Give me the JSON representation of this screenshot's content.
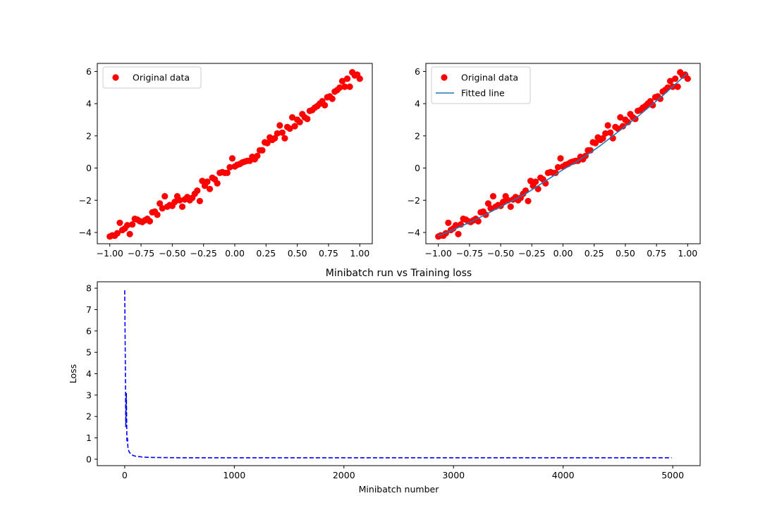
{
  "chart_data": [
    {
      "type": "scatter",
      "title": "",
      "xlabel": "",
      "ylabel": "",
      "xlim": [
        -1.1,
        1.1
      ],
      "ylim": [
        -4.7,
        6.5
      ],
      "xticks": [
        -1.0,
        -0.75,
        -0.5,
        -0.25,
        0.0,
        0.25,
        0.5,
        0.75,
        1.0
      ],
      "xtick_labels": [
        "−1.00",
        "−0.75",
        "−0.50",
        "−0.25",
        "0.00",
        "0.25",
        "0.50",
        "0.75",
        "1.00"
      ],
      "yticks": [
        -4,
        -2,
        0,
        2,
        4,
        6
      ],
      "ytick_labels": [
        "−4",
        "−2",
        "0",
        "2",
        "4",
        "6"
      ],
      "legend": {
        "placement": "upper left",
        "entries": [
          "Original data"
        ]
      },
      "series": [
        {
          "name": "Original data",
          "kind": "scatter",
          "color": "#ff0000",
          "x": [
            -1.0,
            -0.98,
            -0.96,
            -0.94,
            -0.92,
            -0.9,
            -0.88,
            -0.86,
            -0.84,
            -0.82,
            -0.8,
            -0.78,
            -0.76,
            -0.74,
            -0.72,
            -0.7,
            -0.68,
            -0.66,
            -0.64,
            -0.62,
            -0.6,
            -0.58,
            -0.56,
            -0.54,
            -0.52,
            -0.5,
            -0.48,
            -0.46,
            -0.44,
            -0.42,
            -0.4,
            -0.38,
            -0.36,
            -0.34,
            -0.32,
            -0.3,
            -0.28,
            -0.26,
            -0.24,
            -0.22,
            -0.2,
            -0.18,
            -0.16,
            -0.14,
            -0.12,
            -0.1,
            -0.08,
            -0.06,
            -0.04,
            -0.02,
            0.0,
            0.02,
            0.04,
            0.06,
            0.08,
            0.1,
            0.12,
            0.14,
            0.16,
            0.18,
            0.2,
            0.22,
            0.24,
            0.26,
            0.28,
            0.3,
            0.32,
            0.34,
            0.36,
            0.38,
            0.4,
            0.42,
            0.44,
            0.46,
            0.48,
            0.5,
            0.52,
            0.54,
            0.56,
            0.58,
            0.6,
            0.62,
            0.64,
            0.66,
            0.68,
            0.7,
            0.72,
            0.74,
            0.76,
            0.78,
            0.8,
            0.82,
            0.84,
            0.86,
            0.88,
            0.9,
            0.92,
            0.94,
            0.96,
            0.98,
            1.0
          ],
          "y": [
            -4.25,
            -4.18,
            -4.2,
            -4.05,
            -3.4,
            -3.85,
            -3.75,
            -3.55,
            -4.1,
            -3.5,
            -3.15,
            -3.2,
            -3.3,
            -3.35,
            -3.25,
            -3.15,
            -3.3,
            -2.75,
            -2.7,
            -2.9,
            -2.2,
            -2.5,
            -1.75,
            -2.4,
            -2.3,
            -2.35,
            -2.1,
            -1.75,
            -2.0,
            -2.4,
            -1.95,
            -1.8,
            -2.0,
            -1.85,
            -1.6,
            -1.4,
            -2.05,
            -0.8,
            -1.1,
            -0.85,
            -1.3,
            -0.6,
            -0.7,
            -0.95,
            -0.3,
            -0.25,
            -0.3,
            -0.3,
            0.05,
            0.6,
            0.1,
            0.2,
            0.25,
            0.35,
            0.4,
            0.45,
            0.45,
            0.7,
            0.55,
            0.75,
            1.1,
            1.1,
            1.6,
            1.55,
            1.9,
            1.75,
            1.85,
            2.15,
            2.65,
            2.2,
            1.85,
            2.55,
            2.45,
            3.15,
            2.6,
            3.0,
            2.85,
            3.35,
            3.15,
            3.05,
            3.55,
            3.6,
            3.75,
            3.85,
            4.0,
            4.15,
            3.9,
            4.4,
            4.45,
            4.3,
            4.75,
            4.85,
            5.0,
            5.4,
            5.05,
            5.55,
            5.05,
            5.95,
            5.75,
            5.8,
            5.55
          ]
        }
      ]
    },
    {
      "type": "scatter",
      "title": "",
      "xlabel": "",
      "ylabel": "",
      "xlim": [
        -1.1,
        1.1
      ],
      "ylim": [
        -4.7,
        6.5
      ],
      "xticks": [
        -1.0,
        -0.75,
        -0.5,
        -0.25,
        0.0,
        0.25,
        0.5,
        0.75,
        1.0
      ],
      "xtick_labels": [
        "−1.00",
        "−0.75",
        "−0.50",
        "−0.25",
        "0.00",
        "0.25",
        "0.50",
        "0.75",
        "1.00"
      ],
      "yticks": [
        -4,
        -2,
        0,
        2,
        4,
        6
      ],
      "ytick_labels": [
        "−4",
        "−2",
        "0",
        "2",
        "4",
        "6"
      ],
      "legend": {
        "placement": "upper left",
        "entries": [
          "Original data",
          "Fitted line"
        ]
      },
      "series": [
        {
          "name": "Original data",
          "kind": "scatter",
          "color": "#ff0000",
          "x": [
            -1.0,
            -0.98,
            -0.96,
            -0.94,
            -0.92,
            -0.9,
            -0.88,
            -0.86,
            -0.84,
            -0.82,
            -0.8,
            -0.78,
            -0.76,
            -0.74,
            -0.72,
            -0.7,
            -0.68,
            -0.66,
            -0.64,
            -0.62,
            -0.6,
            -0.58,
            -0.56,
            -0.54,
            -0.52,
            -0.5,
            -0.48,
            -0.46,
            -0.44,
            -0.42,
            -0.4,
            -0.38,
            -0.36,
            -0.34,
            -0.32,
            -0.3,
            -0.28,
            -0.26,
            -0.24,
            -0.22,
            -0.2,
            -0.18,
            -0.16,
            -0.14,
            -0.12,
            -0.1,
            -0.08,
            -0.06,
            -0.04,
            -0.02,
            0.0,
            0.02,
            0.04,
            0.06,
            0.08,
            0.1,
            0.12,
            0.14,
            0.16,
            0.18,
            0.2,
            0.22,
            0.24,
            0.26,
            0.28,
            0.3,
            0.32,
            0.34,
            0.36,
            0.38,
            0.4,
            0.42,
            0.44,
            0.46,
            0.48,
            0.5,
            0.52,
            0.54,
            0.56,
            0.58,
            0.6,
            0.62,
            0.64,
            0.66,
            0.68,
            0.7,
            0.72,
            0.74,
            0.76,
            0.78,
            0.8,
            0.82,
            0.84,
            0.86,
            0.88,
            0.9,
            0.92,
            0.94,
            0.96,
            0.98,
            1.0
          ],
          "y": [
            -4.25,
            -4.18,
            -4.2,
            -4.05,
            -3.4,
            -3.85,
            -3.75,
            -3.55,
            -4.1,
            -3.5,
            -3.15,
            -3.2,
            -3.3,
            -3.35,
            -3.25,
            -3.15,
            -3.3,
            -2.75,
            -2.7,
            -2.9,
            -2.2,
            -2.5,
            -1.75,
            -2.4,
            -2.3,
            -2.35,
            -2.1,
            -1.75,
            -2.0,
            -2.4,
            -1.95,
            -1.8,
            -2.0,
            -1.85,
            -1.6,
            -1.4,
            -2.05,
            -0.8,
            -1.1,
            -0.85,
            -1.3,
            -0.6,
            -0.7,
            -0.95,
            -0.3,
            -0.25,
            -0.3,
            -0.3,
            0.05,
            0.6,
            0.1,
            0.2,
            0.25,
            0.35,
            0.4,
            0.45,
            0.45,
            0.7,
            0.55,
            0.75,
            1.1,
            1.1,
            1.6,
            1.55,
            1.9,
            1.75,
            1.85,
            2.15,
            2.65,
            2.2,
            1.85,
            2.55,
            2.45,
            3.15,
            2.6,
            3.0,
            2.85,
            3.35,
            3.15,
            3.05,
            3.55,
            3.6,
            3.75,
            3.85,
            4.0,
            4.15,
            3.9,
            4.4,
            4.45,
            4.3,
            4.75,
            4.85,
            5.0,
            5.4,
            5.05,
            5.55,
            5.05,
            5.95,
            5.75,
            5.8,
            5.55
          ]
        },
        {
          "name": "Fitted line",
          "kind": "line",
          "color": "#1f77b4",
          "x": [
            -1.0,
            -0.9,
            -0.8,
            -0.7,
            -0.6,
            -0.5,
            -0.4,
            -0.3,
            -0.2,
            -0.1,
            0.0,
            0.1,
            0.2,
            0.3,
            0.4,
            0.5,
            0.6,
            0.7,
            0.8,
            0.9,
            1.0
          ],
          "y": [
            -4.2,
            -3.9,
            -3.55,
            -3.2,
            -2.8,
            -2.4,
            -2.0,
            -1.6,
            -1.1,
            -0.6,
            -0.1,
            0.35,
            0.85,
            1.4,
            2.0,
            2.6,
            3.2,
            3.85,
            4.5,
            5.2,
            5.9
          ]
        }
      ]
    },
    {
      "type": "line",
      "title": "Minibatch run vs Training loss",
      "xlabel": "Minibatch number",
      "ylabel": "Loss",
      "xlim": [
        -250,
        5250
      ],
      "ylim": [
        -0.3,
        8.3
      ],
      "xticks": [
        0,
        1000,
        2000,
        3000,
        4000,
        5000
      ],
      "xtick_labels": [
        "0",
        "1000",
        "2000",
        "3000",
        "4000",
        "5000"
      ],
      "yticks": [
        0,
        1,
        2,
        3,
        4,
        5,
        6,
        7,
        8
      ],
      "ytick_labels": [
        "0",
        "1",
        "2",
        "3",
        "4",
        "5",
        "6",
        "7",
        "8"
      ],
      "series": [
        {
          "name": "",
          "kind": "line",
          "style": "dashed",
          "color": "#0000ff",
          "x": [
            0,
            5,
            10,
            15,
            20,
            25,
            30,
            40,
            50,
            60,
            80,
            100,
            150,
            200,
            300,
            500,
            1000,
            2000,
            3000,
            4000,
            4990
          ],
          "y": [
            7.9,
            5.0,
            1.5,
            3.1,
            0.85,
            1.0,
            0.5,
            0.35,
            0.28,
            0.22,
            0.17,
            0.14,
            0.11,
            0.09,
            0.08,
            0.07,
            0.07,
            0.07,
            0.07,
            0.07,
            0.07
          ]
        }
      ]
    }
  ]
}
